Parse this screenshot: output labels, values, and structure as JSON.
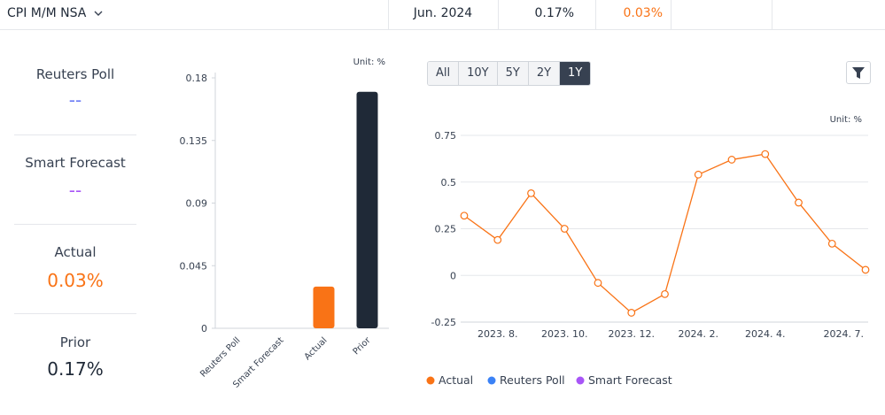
{
  "header": {
    "indicator": "CPI M/M NSA",
    "period": "Jun. 2024",
    "prior": "0.17%",
    "actual": "0.03%"
  },
  "summary": [
    {
      "label": "Reuters Poll",
      "value": "--"
    },
    {
      "label": "Smart Forecast",
      "value": "--"
    },
    {
      "label": "Actual",
      "value": "0.03%"
    },
    {
      "label": "Prior",
      "value": "0.17%"
    }
  ],
  "range_buttons": [
    "All",
    "10Y",
    "5Y",
    "2Y",
    "1Y"
  ],
  "active_range": 4,
  "chart_data": [
    {
      "type": "bar",
      "unit_label": "Unit: %",
      "categories": [
        "Reuters Poll",
        "Smart Forecast",
        "Actual",
        "Prior"
      ],
      "values": [
        null,
        null,
        0.03,
        0.17
      ],
      "colors": [
        "#3b82f6",
        "#a855f7",
        "#f97316",
        "#1f2937"
      ],
      "ylim": [
        0,
        0.18
      ],
      "yticks": [
        0,
        0.045,
        0.09,
        0.135,
        0.18
      ],
      "grid": false
    },
    {
      "type": "line",
      "unit_label": "Unit: %",
      "categories": [
        null,
        "2023. 8.",
        null,
        "2023. 10.",
        null,
        "2023. 12.",
        null,
        "2024. 2.",
        null,
        "2024. 4.",
        null,
        null,
        "2024. 7."
      ],
      "series": [
        {
          "name": "Actual",
          "color": "#f97316",
          "values": [
            0.32,
            0.19,
            0.44,
            0.25,
            -0.04,
            -0.2,
            -0.1,
            0.54,
            0.62,
            0.65,
            0.39,
            0.17,
            0.03
          ]
        },
        {
          "name": "Reuters Poll",
          "color": "#3b82f6",
          "values": [
            null,
            null,
            null,
            null,
            null,
            null,
            null,
            null,
            null,
            null,
            null,
            null,
            null
          ]
        },
        {
          "name": "Smart Forecast",
          "color": "#a855f7",
          "values": [
            null,
            null,
            null,
            null,
            null,
            null,
            null,
            null,
            null,
            null,
            null,
            null,
            null
          ]
        }
      ],
      "ylim": [
        -0.25,
        0.75
      ],
      "yticks": [
        -0.25,
        0,
        0.25,
        0.5,
        0.75
      ],
      "grid": true,
      "legend": "bottom"
    }
  ]
}
